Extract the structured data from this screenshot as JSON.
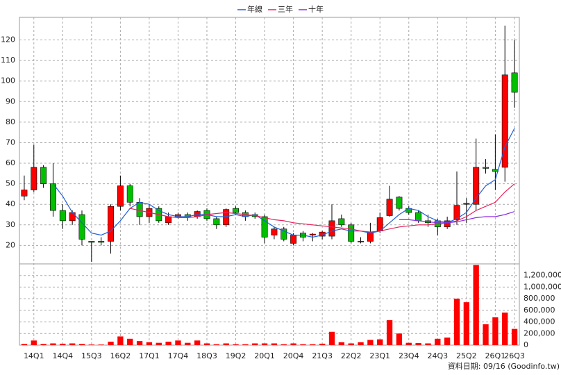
{
  "chart_data": [
    {
      "type": "candlestick",
      "legend": "top",
      "up_color": "#ff0000",
      "down_color": "#00c000",
      "open": [
        44,
        47,
        58,
        50,
        37,
        32,
        35,
        22,
        22,
        22,
        39,
        49,
        41,
        34,
        38,
        31,
        34,
        35,
        34,
        37,
        33,
        30,
        38,
        36,
        35,
        34,
        25,
        28,
        21,
        26,
        25,
        24.5,
        24.5,
        33,
        30,
        22,
        22,
        27,
        34.5,
        43.5,
        38,
        36,
        32,
        32,
        29,
        32.5,
        40,
        40,
        58,
        57,
        58,
        104
      ],
      "high": [
        54,
        69,
        59,
        60,
        40,
        37,
        37,
        22,
        24,
        40,
        54,
        50,
        43,
        40,
        39,
        36,
        36,
        36,
        37,
        38,
        34,
        38,
        39,
        37,
        36,
        35,
        29,
        29,
        26,
        27,
        26,
        27,
        40,
        35,
        31,
        24,
        31,
        36,
        49,
        44,
        39,
        37,
        35,
        33,
        34,
        56,
        43,
        72,
        62,
        74,
        127,
        120
      ],
      "low": [
        42,
        46,
        48,
        34,
        28,
        30,
        20,
        12,
        20,
        16,
        37,
        39,
        30,
        31,
        31,
        30,
        33,
        32,
        33,
        32,
        28,
        29,
        35,
        32,
        33,
        21,
        23,
        22,
        20,
        22,
        22,
        23,
        23,
        29,
        21,
        21,
        21,
        26,
        34,
        37,
        35,
        31,
        29,
        25,
        28,
        30,
        31,
        37,
        55,
        47,
        51,
        87
      ],
      "close": [
        47,
        58,
        50,
        37,
        32,
        36,
        23,
        21.5,
        21.5,
        39,
        49,
        41,
        34,
        38,
        32,
        34,
        35,
        34,
        36.5,
        33,
        30,
        37.5,
        36,
        34,
        34,
        24,
        28,
        23,
        25,
        24,
        25.5,
        26.5,
        32,
        30,
        22,
        22,
        26.5,
        33.5,
        42.5,
        38,
        36,
        32,
        31,
        29,
        32,
        39.5,
        40.5,
        58,
        57.5,
        56,
        103,
        94.5
      ],
      "series": [
        {
          "name": "年線",
          "color": "#1f5fd8",
          "values": [
            null,
            null,
            null,
            50,
            44,
            36,
            31,
            26,
            25,
            27,
            32,
            38,
            41,
            40,
            37,
            35,
            34,
            34,
            35,
            35,
            34,
            34,
            35,
            34,
            35,
            32,
            29,
            27,
            25,
            25,
            24,
            25,
            27,
            28,
            27,
            27,
            26,
            27,
            31,
            35,
            38,
            37,
            34,
            32,
            31,
            33,
            36,
            43,
            49,
            52,
            68,
            77
          ]
        },
        {
          "name": "三年",
          "color": "#e8205a",
          "values": [
            null,
            null,
            null,
            null,
            null,
            null,
            null,
            null,
            null,
            null,
            null,
            38,
            37,
            36,
            35,
            34,
            33.5,
            33.5,
            34,
            35,
            35.5,
            36,
            35.5,
            35,
            34.5,
            33.5,
            32.5,
            32,
            31,
            30.5,
            30,
            29.5,
            29,
            28.5,
            28,
            27,
            26.5,
            27,
            28,
            29,
            29.5,
            30,
            30,
            30.5,
            31,
            32,
            34,
            37,
            39,
            41,
            46,
            50
          ]
        },
        {
          "name": "十年",
          "color": "#8a2be2",
          "values": [
            null,
            null,
            null,
            null,
            null,
            null,
            null,
            null,
            null,
            null,
            null,
            null,
            null,
            null,
            null,
            null,
            null,
            null,
            null,
            null,
            null,
            null,
            null,
            null,
            null,
            null,
            null,
            null,
            null,
            null,
            null,
            null,
            null,
            null,
            null,
            null,
            null,
            null,
            null,
            32.5,
            32.5,
            32,
            31.5,
            31,
            31,
            31.5,
            32.5,
            33.5,
            34,
            34,
            35,
            36.5
          ]
        }
      ],
      "ylim": [
        11,
        131
      ],
      "yticks": [
        20,
        30,
        40,
        50,
        60,
        70,
        80,
        90,
        100,
        110,
        120
      ],
      "grid": true
    },
    {
      "type": "bar",
      "color": "#ff0000",
      "categories": [
        null,
        "14Q1",
        null,
        null,
        "14Q4",
        null,
        null,
        "15Q3",
        null,
        null,
        "16Q2",
        null,
        null,
        "17Q1",
        null,
        null,
        "17Q4",
        null,
        null,
        "18Q3",
        null,
        null,
        "19Q2",
        null,
        null,
        "20Q1",
        null,
        null,
        "20Q4",
        null,
        null,
        "21Q3",
        null,
        null,
        "22Q2",
        null,
        null,
        "23Q1",
        null,
        null,
        "23Q4",
        null,
        null,
        "24Q3",
        null,
        null,
        "25Q2",
        null,
        null,
        "26Q1",
        null,
        "26Q3"
      ],
      "values": [
        20000,
        80000,
        20000,
        30000,
        25000,
        30000,
        20000,
        10000,
        10000,
        60000,
        150000,
        110000,
        70000,
        50000,
        40000,
        60000,
        80000,
        40000,
        80000,
        30000,
        15000,
        30000,
        15000,
        15000,
        30000,
        30000,
        30000,
        15000,
        30000,
        15000,
        15000,
        25000,
        230000,
        50000,
        30000,
        50000,
        90000,
        100000,
        430000,
        200000,
        40000,
        35000,
        30000,
        110000,
        130000,
        800000,
        740000,
        1380000,
        360000,
        480000,
        560000,
        280000
      ],
      "ylim": [
        0,
        1400000
      ],
      "yticks": [
        0,
        {
          "value": 200000,
          "label": "200,000"
        },
        {
          "value": 400000,
          "label": "400,000"
        },
        {
          "value": 600000,
          "label": "600,000"
        },
        {
          "value": 800000,
          "label": "800,000"
        },
        {
          "value": 1000000,
          "label": "1,000,000"
        },
        {
          "value": 1200000,
          "label": "1,200,000"
        }
      ],
      "grid": true,
      "note": "資料日期: 09/16 (Goodinfo.tw)"
    }
  ]
}
